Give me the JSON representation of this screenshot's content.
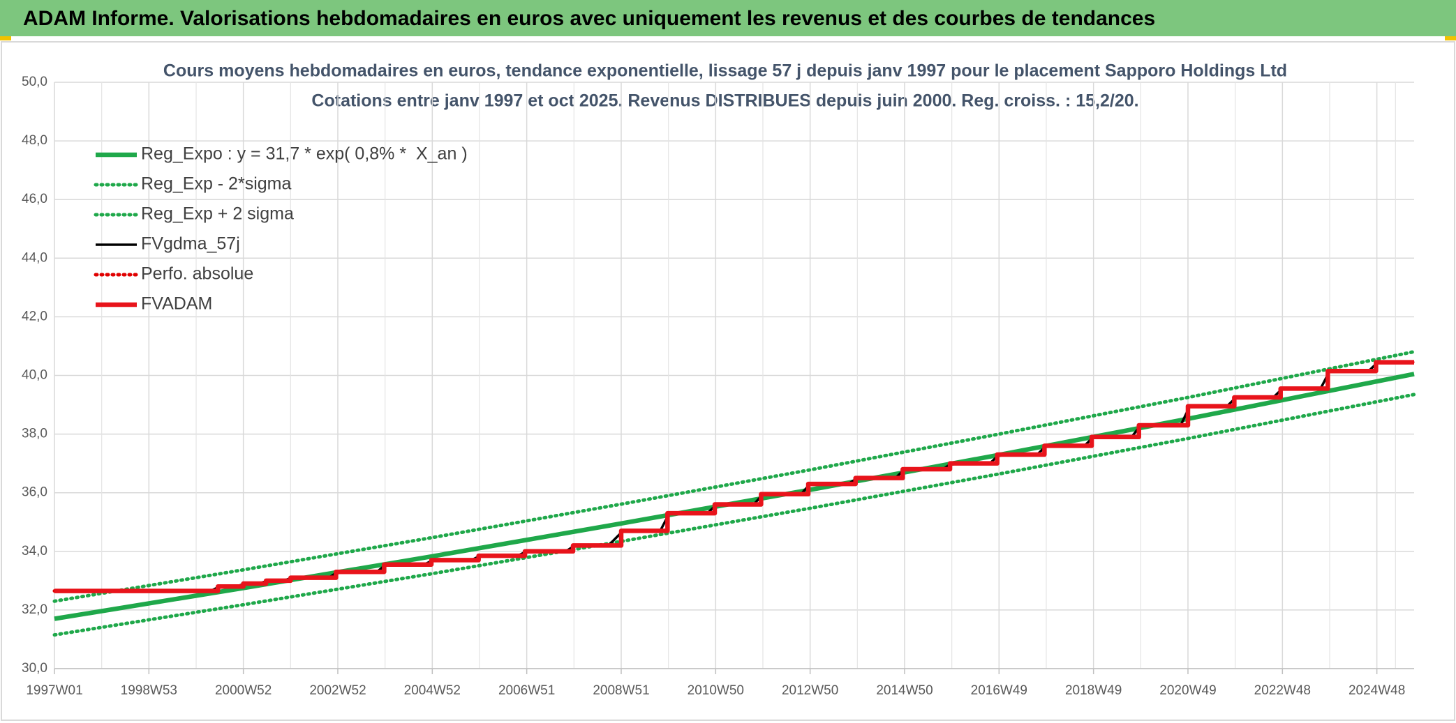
{
  "header": {
    "title": "ADAM Informe. Valorisations hebdomadaires en euros avec uniquement les revenus et des courbes de tendances"
  },
  "chart_data": {
    "type": "line",
    "title": "Cours moyens hebdomadaires en euros, tendance exponentielle, lissage 57 j depuis janv 1997 pour le placement Sapporo Holdings Ltd",
    "subtitle": "Cotations entre janv 1997 et oct 2025. Revenus DISTRIBUES depuis juin 2000. Reg. croiss. : 15,2/20.",
    "xlim": [
      0,
      1497
    ],
    "xticks": [
      {
        "value": 0,
        "label": "1997W01"
      },
      {
        "value": 104,
        "label": "1998W53"
      },
      {
        "value": 208,
        "label": "2000W52"
      },
      {
        "value": 312,
        "label": "2002W52"
      },
      {
        "value": 416,
        "label": "2004W52"
      },
      {
        "value": 520,
        "label": "2006W51"
      },
      {
        "value": 624,
        "label": "2008W51"
      },
      {
        "value": 728,
        "label": "2010W50"
      },
      {
        "value": 832,
        "label": "2012W50"
      },
      {
        "value": 936,
        "label": "2014W50"
      },
      {
        "value": 1040,
        "label": "2016W49"
      },
      {
        "value": 1144,
        "label": "2018W49"
      },
      {
        "value": 1248,
        "label": "2020W49"
      },
      {
        "value": 1352,
        "label": "2022W48"
      },
      {
        "value": 1456,
        "label": "2024W48"
      }
    ],
    "ylim": [
      30,
      50
    ],
    "yticks": [
      {
        "value": 30,
        "label": "30,0"
      },
      {
        "value": 32,
        "label": "32,0"
      },
      {
        "value": 34,
        "label": "34,0"
      },
      {
        "value": 36,
        "label": "36,0"
      },
      {
        "value": 38,
        "label": "38,0"
      },
      {
        "value": 40,
        "label": "40,0"
      },
      {
        "value": 42,
        "label": "42,0"
      },
      {
        "value": 44,
        "label": "44,0"
      },
      {
        "value": 46,
        "label": "46,0"
      },
      {
        "value": 48,
        "label": "48,0"
      },
      {
        "value": 50,
        "label": "50,0"
      }
    ],
    "grid": true,
    "legend": "top-left",
    "series": [
      {
        "name": "Reg_Expo : y = 31,7 * exp( 0,8% *  X_an )",
        "color": "#1fa84a",
        "style": "thick",
        "x": [
          0,
          208,
          416,
          624,
          832,
          1040,
          1248,
          1497
        ],
        "values": [
          31.7,
          32.75,
          33.83,
          34.95,
          36.1,
          37.29,
          38.52,
          40.05
        ]
      },
      {
        "name": "Reg_Exp - 2*sigma",
        "color": "#1fa84a",
        "style": "dotted",
        "x": [
          0,
          208,
          416,
          624,
          832,
          1040,
          1248,
          1497
        ],
        "values": [
          31.15,
          32.18,
          33.24,
          34.34,
          35.47,
          36.64,
          37.85,
          39.35
        ]
      },
      {
        "name": "Reg_Exp + 2 sigma",
        "color": "#1fa84a",
        "style": "dotted",
        "x": [
          0,
          208,
          416,
          624,
          832,
          1040,
          1248,
          1497
        ],
        "values": [
          32.3,
          33.37,
          34.47,
          35.61,
          36.78,
          38.0,
          39.25,
          40.81
        ]
      },
      {
        "name": "FVgdma_57j",
        "color": "#000000",
        "style": "thin",
        "x": [
          0,
          172,
          182,
          200,
          210,
          225,
          235,
          252,
          262,
          302,
          312,
          355,
          365,
          407,
          417,
          459,
          469,
          510,
          520,
          563,
          573,
          610,
          626,
          667,
          677,
          719,
          729,
          770,
          780,
          822,
          832,
          874,
          884,
          926,
          936,
          978,
          988,
          1030,
          1040,
          1082,
          1092,
          1134,
          1144,
          1186,
          1196,
          1240,
          1250,
          1291,
          1301,
          1342,
          1352,
          1394,
          1404,
          1447,
          1457,
          1497
        ],
        "values": [
          32.65,
          32.65,
          32.8,
          32.8,
          32.9,
          32.9,
          33.0,
          33.0,
          33.1,
          33.1,
          33.3,
          33.3,
          33.55,
          33.55,
          33.7,
          33.7,
          33.85,
          33.85,
          34.0,
          34.0,
          34.2,
          34.2,
          34.7,
          34.7,
          35.3,
          35.3,
          35.6,
          35.6,
          35.95,
          35.95,
          36.3,
          36.3,
          36.5,
          36.5,
          36.8,
          36.8,
          37.0,
          37.0,
          37.3,
          37.3,
          37.6,
          37.6,
          37.9,
          37.9,
          38.3,
          38.3,
          38.95,
          38.95,
          39.25,
          39.25,
          39.55,
          39.55,
          40.15,
          40.15,
          40.45,
          40.45
        ]
      },
      {
        "name": "Perfo. absolue",
        "color": "#e00000",
        "style": "dotted",
        "x": [
          0,
          180,
          180,
          208,
          208,
          233,
          233,
          260,
          260,
          310,
          310,
          363,
          363,
          415,
          415,
          467,
          467,
          518,
          518,
          571,
          571,
          624,
          624,
          675,
          675,
          727,
          727,
          778,
          778,
          830,
          830,
          882,
          882,
          934,
          934,
          986,
          986,
          1038,
          1038,
          1090,
          1090,
          1142,
          1142,
          1194,
          1194,
          1248,
          1248,
          1299,
          1299,
          1350,
          1350,
          1402,
          1402,
          1455,
          1455,
          1497
        ],
        "values": [
          32.65,
          32.65,
          32.8,
          32.8,
          32.9,
          32.9,
          33.0,
          33.0,
          33.1,
          33.1,
          33.3,
          33.3,
          33.55,
          33.55,
          33.7,
          33.7,
          33.85,
          33.85,
          34.0,
          34.0,
          34.2,
          34.2,
          34.7,
          34.7,
          35.3,
          35.3,
          35.6,
          35.6,
          35.95,
          35.95,
          36.3,
          36.3,
          36.5,
          36.5,
          36.8,
          36.8,
          37.0,
          37.0,
          37.3,
          37.3,
          37.6,
          37.6,
          37.9,
          37.9,
          38.3,
          38.3,
          38.95,
          38.95,
          39.25,
          39.25,
          39.55,
          39.55,
          40.15,
          40.15,
          40.45,
          40.45
        ]
      },
      {
        "name": "FVADAM",
        "color": "#e8141b",
        "style": "thick",
        "x": [
          0,
          180,
          180,
          208,
          208,
          233,
          233,
          260,
          260,
          310,
          310,
          363,
          363,
          415,
          415,
          467,
          467,
          518,
          518,
          571,
          571,
          624,
          624,
          675,
          675,
          727,
          727,
          778,
          778,
          830,
          830,
          882,
          882,
          934,
          934,
          986,
          986,
          1038,
          1038,
          1090,
          1090,
          1142,
          1142,
          1194,
          1194,
          1248,
          1248,
          1299,
          1299,
          1350,
          1350,
          1402,
          1402,
          1455,
          1455,
          1497
        ],
        "values": [
          32.65,
          32.65,
          32.8,
          32.8,
          32.9,
          32.9,
          33.0,
          33.0,
          33.1,
          33.1,
          33.3,
          33.3,
          33.55,
          33.55,
          33.7,
          33.7,
          33.85,
          33.85,
          34.0,
          34.0,
          34.2,
          34.2,
          34.7,
          34.7,
          35.3,
          35.3,
          35.6,
          35.6,
          35.95,
          35.95,
          36.3,
          36.3,
          36.5,
          36.5,
          36.8,
          36.8,
          37.0,
          37.0,
          37.3,
          37.3,
          37.6,
          37.6,
          37.9,
          37.9,
          38.3,
          38.3,
          38.95,
          38.95,
          39.25,
          39.25,
          39.55,
          39.55,
          40.15,
          40.15,
          40.45,
          40.45
        ]
      }
    ]
  }
}
